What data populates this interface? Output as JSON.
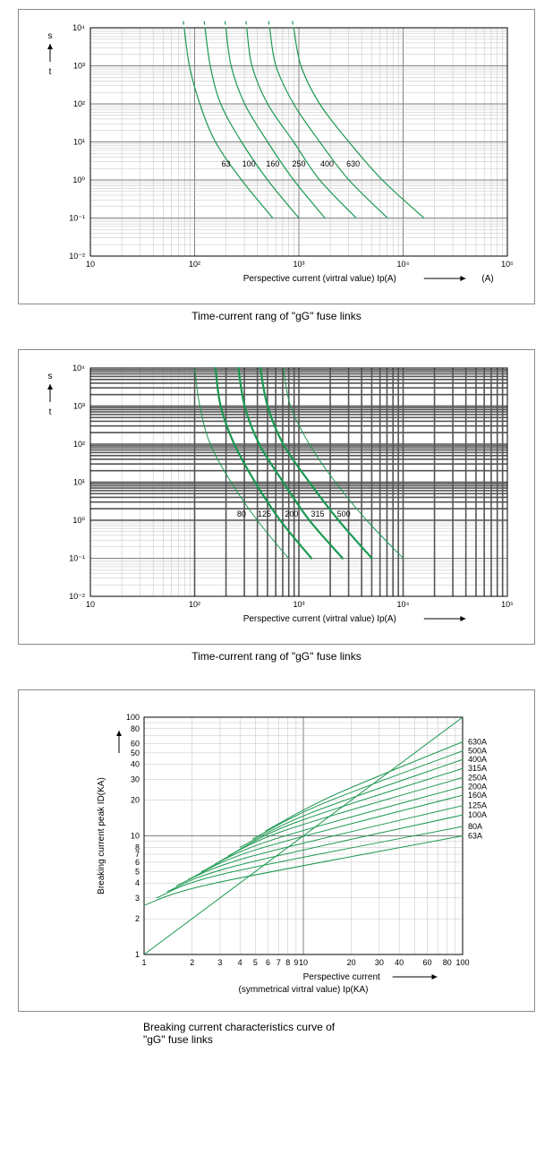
{
  "colors": {
    "curve": "#1a9850",
    "curve_thick": "#1a9850",
    "grid_minor": "#c0c0c0",
    "grid_major": "#808080",
    "grid_bold": "#555555",
    "frame": "#000000",
    "text": "#000000",
    "bg": "#ffffff"
  },
  "chart1": {
    "type": "line-loglog",
    "caption": "Time-current rang of  \"gG\" fuse links",
    "y_axis_label_top": "s",
    "y_axis_label_bottom": "t",
    "x_axis_label": "Perspective current (virtral value) Ip(A)",
    "x_axis_unit_suffix": "(A)",
    "x_min_exp": 1,
    "x_max_exp": 5,
    "y_min_exp": -2,
    "y_max_exp": 4,
    "y_tick_exps": [
      -2,
      -1,
      0,
      1,
      2,
      3,
      4
    ],
    "y_tick_labels": [
      "10⁻²",
      "10⁻¹",
      "10⁰",
      "10¹",
      "10²",
      "10³",
      "10⁴"
    ],
    "x_tick_exps": [
      1,
      2,
      3,
      4,
      5
    ],
    "x_tick_labels": [
      "10",
      "10²",
      "10³",
      "10⁴",
      "10⁵"
    ],
    "curve_stroke_width": 1.2,
    "dash_top": true,
    "series": [
      {
        "label": "63",
        "pts": [
          [
            1.9,
            4.0
          ],
          [
            1.95,
            3.0
          ],
          [
            2.05,
            2.0
          ],
          [
            2.2,
            1.0
          ],
          [
            2.45,
            0.0
          ],
          [
            2.75,
            -1.0
          ]
        ],
        "label_at": [
          2.3,
          0.35
        ]
      },
      {
        "label": "100",
        "pts": [
          [
            2.1,
            4.0
          ],
          [
            2.15,
            3.0
          ],
          [
            2.25,
            2.0
          ],
          [
            2.45,
            1.0
          ],
          [
            2.7,
            0.0
          ],
          [
            3.0,
            -1.0
          ]
        ],
        "label_at": [
          2.52,
          0.35
        ]
      },
      {
        "label": "160",
        "pts": [
          [
            2.3,
            4.0
          ],
          [
            2.35,
            3.0
          ],
          [
            2.48,
            2.0
          ],
          [
            2.7,
            1.0
          ],
          [
            2.95,
            0.0
          ],
          [
            3.25,
            -1.0
          ]
        ],
        "label_at": [
          2.75,
          0.35
        ]
      },
      {
        "label": "250",
        "pts": [
          [
            2.5,
            4.0
          ],
          [
            2.55,
            3.0
          ],
          [
            2.7,
            2.0
          ],
          [
            2.95,
            1.0
          ],
          [
            3.2,
            0.0
          ],
          [
            3.55,
            -1.0
          ]
        ],
        "label_at": [
          3.0,
          0.35
        ]
      },
      {
        "label": "400",
        "pts": [
          [
            2.72,
            4.0
          ],
          [
            2.78,
            3.0
          ],
          [
            2.95,
            2.0
          ],
          [
            3.2,
            1.0
          ],
          [
            3.48,
            0.0
          ],
          [
            3.85,
            -1.0
          ]
        ],
        "label_at": [
          3.27,
          0.35
        ]
      },
      {
        "label": "630",
        "pts": [
          [
            2.95,
            4.0
          ],
          [
            3.02,
            3.0
          ],
          [
            3.2,
            2.0
          ],
          [
            3.48,
            1.0
          ],
          [
            3.8,
            0.0
          ],
          [
            4.2,
            -1.0
          ]
        ],
        "label_at": [
          3.52,
          0.35
        ]
      }
    ]
  },
  "chart2": {
    "type": "line-loglog",
    "caption": "Time-current rang of  \"gG\" fuse links",
    "y_axis_label_top": "s",
    "y_axis_label_bottom": "t",
    "x_axis_label": "Perspective current (virtral value) Ip(A)",
    "x_min_exp": 1,
    "x_max_exp": 5,
    "y_min_exp": -2,
    "y_max_exp": 4,
    "y_tick_exps": [
      -2,
      -1,
      0,
      1,
      2,
      3,
      4
    ],
    "y_tick_labels": [
      "10⁻²",
      "10⁻¹",
      "10⁰",
      "10¹",
      "10²",
      "10³",
      "10⁴"
    ],
    "x_tick_exps": [
      1,
      2,
      3,
      4,
      5
    ],
    "x_tick_labels": [
      "10",
      "10²",
      "10³",
      "10⁴",
      "10⁵"
    ],
    "thin_stroke_width": 1.0,
    "thick_stroke_width": 2.2,
    "grid_bold_decades_x": [
      2,
      3,
      4
    ],
    "grid_bold_decades_y": [
      0,
      1,
      2,
      3
    ],
    "series": [
      {
        "label": "80",
        "thick": false,
        "pts": [
          [
            2.0,
            4.0
          ],
          [
            2.05,
            3.0
          ],
          [
            2.15,
            2.0
          ],
          [
            2.35,
            1.0
          ],
          [
            2.6,
            0.0
          ],
          [
            2.9,
            -1.0
          ]
        ],
        "label_at": [
          2.45,
          0.1
        ]
      },
      {
        "label": "125",
        "thick": true,
        "pts": [
          [
            2.2,
            4.0
          ],
          [
            2.25,
            3.0
          ],
          [
            2.38,
            2.0
          ],
          [
            2.58,
            1.0
          ],
          [
            2.82,
            0.0
          ],
          [
            3.12,
            -1.0
          ]
        ],
        "label_at": [
          2.67,
          0.1
        ]
      },
      {
        "label": "200",
        "thick": true,
        "pts": [
          [
            2.42,
            4.0
          ],
          [
            2.48,
            3.0
          ],
          [
            2.62,
            2.0
          ],
          [
            2.85,
            1.0
          ],
          [
            3.1,
            0.0
          ],
          [
            3.42,
            -1.0
          ]
        ],
        "label_at": [
          2.93,
          0.1
        ]
      },
      {
        "label": "315",
        "thick": true,
        "pts": [
          [
            2.63,
            4.0
          ],
          [
            2.7,
            3.0
          ],
          [
            2.85,
            2.0
          ],
          [
            3.1,
            1.0
          ],
          [
            3.38,
            0.0
          ],
          [
            3.7,
            -1.0
          ]
        ],
        "label_at": [
          3.18,
          0.1
        ]
      },
      {
        "label": "500",
        "thick": false,
        "pts": [
          [
            2.85,
            4.0
          ],
          [
            2.92,
            3.0
          ],
          [
            3.1,
            2.0
          ],
          [
            3.35,
            1.0
          ],
          [
            3.65,
            0.0
          ],
          [
            4.0,
            -1.0
          ]
        ],
        "label_at": [
          3.43,
          0.1
        ]
      }
    ]
  },
  "chart3": {
    "type": "line-loglog",
    "caption_line1": "Breaking current characteristics curve of",
    "caption_line2": "\"gG\" fuse links",
    "y_axis_label": "Breaking current peak ID(KA)",
    "x_axis_label_line1": "Perspective current",
    "x_axis_label_line2": "(symmetrical virtral value) Ip(KA)",
    "x_min": 1,
    "x_max": 100,
    "y_min": 1,
    "y_max": 100,
    "x_ticks": [
      1,
      2,
      3,
      4,
      5,
      6,
      7,
      8,
      9,
      10,
      20,
      30,
      40,
      60,
      80,
      100
    ],
    "x_tick_labels": [
      "1",
      "2",
      "3",
      "4",
      "5",
      "6",
      "7",
      "8",
      "9",
      "10",
      "20",
      "30",
      "40",
      "60",
      "80",
      "100"
    ],
    "y_ticks": [
      1,
      2,
      3,
      4,
      5,
      6,
      7,
      8,
      10,
      20,
      30,
      40,
      50,
      60,
      80,
      100
    ],
    "y_tick_labels": [
      "1",
      "2",
      "3",
      "4",
      "5",
      "6",
      "7",
      "8",
      "10",
      "20",
      "30",
      "40",
      "50",
      "60",
      "80",
      "100"
    ],
    "curve_stroke_width": 1.0,
    "diag_end": [
      100,
      100
    ],
    "series": [
      {
        "label": "63A",
        "start": [
          1.0,
          2.6
        ],
        "knee": [
          2.8,
          4.0
        ],
        "end": [
          100,
          10
        ]
      },
      {
        "label": "80A",
        "start": [
          1.2,
          3.0
        ],
        "knee": [
          3.2,
          4.8
        ],
        "end": [
          100,
          12
        ]
      },
      {
        "label": "100A",
        "start": [
          1.4,
          3.4
        ],
        "knee": [
          3.8,
          5.6
        ],
        "end": [
          100,
          15
        ]
      },
      {
        "label": "125A",
        "start": [
          1.6,
          3.8
        ],
        "knee": [
          4.5,
          6.6
        ],
        "end": [
          100,
          18
        ]
      },
      {
        "label": "160A",
        "start": [
          1.9,
          4.3
        ],
        "knee": [
          5.3,
          7.8
        ],
        "end": [
          100,
          22
        ]
      },
      {
        "label": "200A",
        "start": [
          2.3,
          5.0
        ],
        "knee": [
          6.3,
          9.2
        ],
        "end": [
          100,
          26
        ]
      },
      {
        "label": "250A",
        "start": [
          2.8,
          5.8
        ],
        "knee": [
          7.5,
          11.0
        ],
        "end": [
          100,
          31
        ]
      },
      {
        "label": "315A",
        "start": [
          3.4,
          6.8
        ],
        "knee": [
          9.0,
          13.0
        ],
        "end": [
          100,
          37
        ]
      },
      {
        "label": "400A",
        "start": [
          4.0,
          8.0
        ],
        "knee": [
          11.0,
          15.5
        ],
        "end": [
          100,
          44
        ]
      },
      {
        "label": "500A",
        "start": [
          4.8,
          9.4
        ],
        "knee": [
          13.0,
          18.5
        ],
        "end": [
          100,
          52
        ]
      },
      {
        "label": "630A",
        "start": [
          5.8,
          11.0
        ],
        "knee": [
          15.5,
          22.0
        ],
        "end": [
          100,
          62
        ]
      }
    ]
  }
}
